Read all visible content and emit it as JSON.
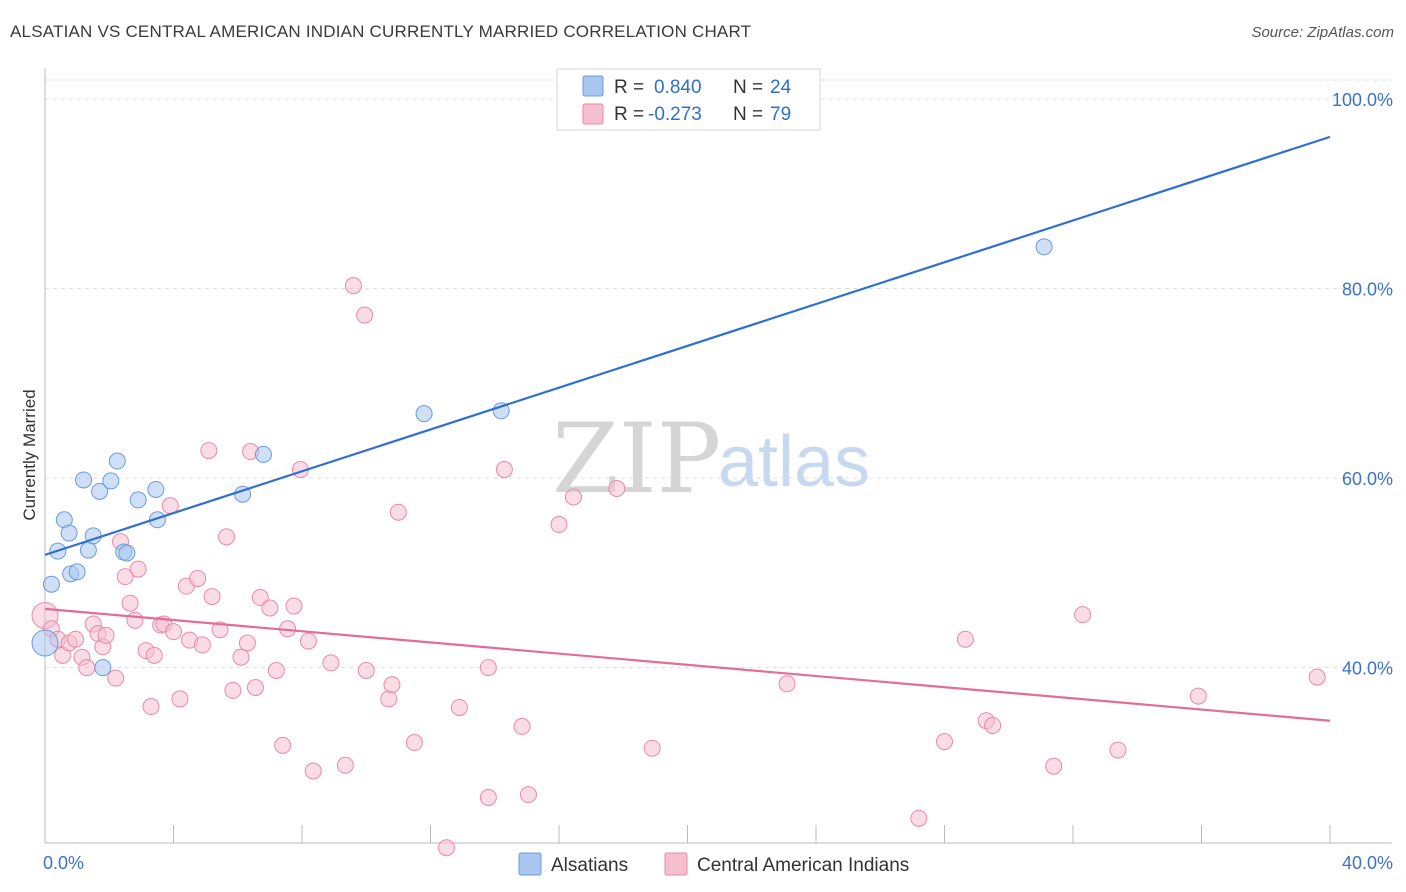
{
  "header": {
    "title": "ALSATIAN VS CENTRAL AMERICAN INDIAN CURRENTLY MARRIED CORRELATION CHART",
    "source": "Source: ZipAtlas.com"
  },
  "watermark": {
    "part1": "ZIP",
    "part2": "atlas"
  },
  "legend": {
    "rows": [
      {
        "r_label": "R =",
        "r_value": "0.840",
        "n_label": "N =",
        "n_value": "24",
        "color": "#a8c6ee",
        "stroke": "#6a9be0"
      },
      {
        "r_label": "R =",
        "r_value": "-0.273",
        "n_label": "N =",
        "n_value": "79",
        "color": "#f6bfd0",
        "stroke": "#e98aa8"
      }
    ]
  },
  "bottom_legend": {
    "items": [
      {
        "label": "Alsatians",
        "color": "#a8c6ee",
        "stroke": "#6a9be0"
      },
      {
        "label": "Central American Indians",
        "color": "#f6bfd0",
        "stroke": "#e98aa8"
      }
    ]
  },
  "chart_data": {
    "type": "scatter",
    "title": "ALSATIAN VS CENTRAL AMERICAN INDIAN CURRENTLY MARRIED CORRELATION CHART",
    "xlabel": "",
    "ylabel": "Currently Married",
    "xlim": [
      0,
      40
    ],
    "ylim": [
      21.5,
      102
    ],
    "x_tick_labels": [
      "0.0%",
      "40.0%"
    ],
    "y_ticks": [
      40,
      60,
      80,
      100
    ],
    "y_tick_labels": [
      "40.0%",
      "60.0%",
      "80.0%",
      "100.0%"
    ],
    "grid": true,
    "legend_position": "top-center",
    "series": [
      {
        "name": "Alsatians",
        "color": "#6a9be0",
        "fill": "#a8c6ee",
        "line_color": "#2f6fce",
        "trend": {
          "x": [
            0,
            40
          ],
          "y": [
            51.9,
            96.0
          ]
        },
        "points": [
          [
            0.0,
            42.6
          ],
          [
            0.2,
            48.8
          ],
          [
            0.4,
            52.3
          ],
          [
            0.6,
            55.6
          ],
          [
            0.75,
            54.2
          ],
          [
            0.8,
            49.9
          ],
          [
            1.0,
            50.1
          ],
          [
            1.2,
            59.8
          ],
          [
            1.35,
            52.4
          ],
          [
            1.5,
            53.9
          ],
          [
            1.7,
            58.6
          ],
          [
            1.8,
            40.0
          ],
          [
            2.05,
            59.7
          ],
          [
            2.25,
            61.8
          ],
          [
            2.45,
            52.2
          ],
          [
            2.55,
            52.1
          ],
          [
            2.9,
            57.7
          ],
          [
            3.45,
            58.8
          ],
          [
            3.5,
            55.6
          ],
          [
            6.15,
            58.3
          ],
          [
            6.8,
            62.5
          ],
          [
            11.8,
            66.8
          ],
          [
            14.2,
            67.1
          ],
          [
            31.1,
            84.4
          ]
        ]
      },
      {
        "name": "Central American Indians",
        "color": "#e98aa8",
        "fill": "#f6bfd0",
        "line_color": "#e36c98",
        "trend": {
          "x": [
            0,
            40
          ],
          "y": [
            46.2,
            34.4
          ]
        },
        "points": [
          [
            0.0,
            45.5
          ],
          [
            0.2,
            44.1
          ],
          [
            0.4,
            43.0
          ],
          [
            0.55,
            41.3
          ],
          [
            0.75,
            42.6
          ],
          [
            0.95,
            43.0
          ],
          [
            1.15,
            41.1
          ],
          [
            1.3,
            40.0
          ],
          [
            1.5,
            44.6
          ],
          [
            1.65,
            43.6
          ],
          [
            1.8,
            42.2
          ],
          [
            1.9,
            43.4
          ],
          [
            2.2,
            38.9
          ],
          [
            2.35,
            53.3
          ],
          [
            2.5,
            49.6
          ],
          [
            2.65,
            46.8
          ],
          [
            2.8,
            45.0
          ],
          [
            2.9,
            50.4
          ],
          [
            3.15,
            41.8
          ],
          [
            3.3,
            35.9
          ],
          [
            3.4,
            41.3
          ],
          [
            3.6,
            44.5
          ],
          [
            3.7,
            44.6
          ],
          [
            3.9,
            57.1
          ],
          [
            4.0,
            43.8
          ],
          [
            4.2,
            36.7
          ],
          [
            4.4,
            48.6
          ],
          [
            4.5,
            42.9
          ],
          [
            4.75,
            49.4
          ],
          [
            4.9,
            42.4
          ],
          [
            5.1,
            62.9
          ],
          [
            5.2,
            47.5
          ],
          [
            5.45,
            44.0
          ],
          [
            5.65,
            53.8
          ],
          [
            5.85,
            37.6
          ],
          [
            6.1,
            41.1
          ],
          [
            6.3,
            42.6
          ],
          [
            6.4,
            62.8
          ],
          [
            6.55,
            37.9
          ],
          [
            6.7,
            47.4
          ],
          [
            7.0,
            46.3
          ],
          [
            7.2,
            39.7
          ],
          [
            7.4,
            31.8
          ],
          [
            7.55,
            44.1
          ],
          [
            7.75,
            46.5
          ],
          [
            7.95,
            60.9
          ],
          [
            8.2,
            42.8
          ],
          [
            8.35,
            29.1
          ],
          [
            8.9,
            40.5
          ],
          [
            9.35,
            29.7
          ],
          [
            9.6,
            80.3
          ],
          [
            9.95,
            77.2
          ],
          [
            10.0,
            39.7
          ],
          [
            10.7,
            36.7
          ],
          [
            10.8,
            38.2
          ],
          [
            11.0,
            56.4
          ],
          [
            11.5,
            32.1
          ],
          [
            12.5,
            21.0
          ],
          [
            12.9,
            35.8
          ],
          [
            13.8,
            40.0
          ],
          [
            13.8,
            26.3
          ],
          [
            14.3,
            60.9
          ],
          [
            14.85,
            33.8
          ],
          [
            15.05,
            26.6
          ],
          [
            16.0,
            55.1
          ],
          [
            16.45,
            58.0
          ],
          [
            17.8,
            58.9
          ],
          [
            18.9,
            31.5
          ],
          [
            23.1,
            38.3
          ],
          [
            27.2,
            24.1
          ],
          [
            28.0,
            32.2
          ],
          [
            28.65,
            43.0
          ],
          [
            29.3,
            34.4
          ],
          [
            29.5,
            33.9
          ],
          [
            31.4,
            29.6
          ],
          [
            32.3,
            45.6
          ],
          [
            33.4,
            31.3
          ],
          [
            35.9,
            37.0
          ],
          [
            39.6,
            39.0
          ]
        ]
      }
    ]
  }
}
